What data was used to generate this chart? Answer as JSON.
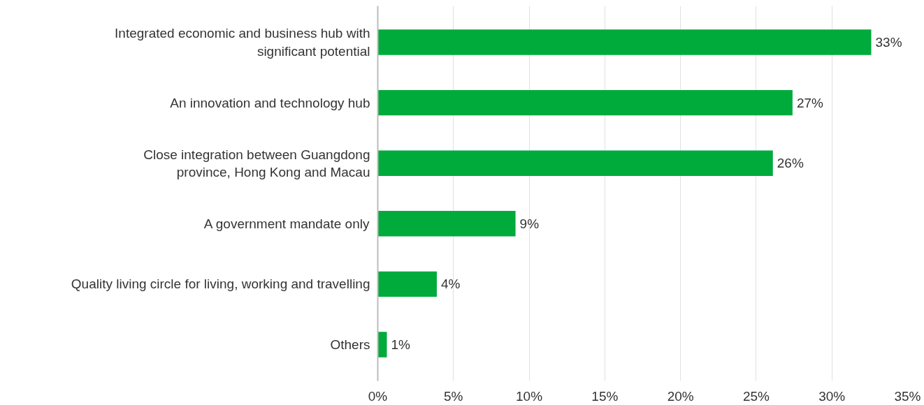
{
  "chart_data": {
    "type": "bar",
    "orientation": "horizontal",
    "categories": [
      "Integrated economic and business hub with\nsignificant potential",
      "An innovation and technology hub",
      "Close integration between Guangdong\nprovince, Hong Kong and Macau",
      "A government mandate only",
      "Quality living circle for living, working and travelling",
      "Others"
    ],
    "values": [
      32.6,
      27.4,
      26.1,
      9.1,
      3.9,
      0.6
    ],
    "value_labels": [
      "33%",
      "27%",
      "26%",
      "9%",
      "4%",
      "1%"
    ],
    "color": "#00aa3b",
    "xlim": [
      0,
      35
    ],
    "xticks": [
      {
        "value": 0,
        "label": "0%"
      },
      {
        "value": 5,
        "label": "5%"
      },
      {
        "value": 10,
        "label": "10%"
      },
      {
        "value": 15,
        "label": "15%"
      },
      {
        "value": 20,
        "label": "20%"
      },
      {
        "value": 25,
        "label": "25%"
      },
      {
        "value": 30,
        "label": "30%"
      },
      {
        "value": 35,
        "label": "35%"
      }
    ],
    "grid": "x"
  }
}
